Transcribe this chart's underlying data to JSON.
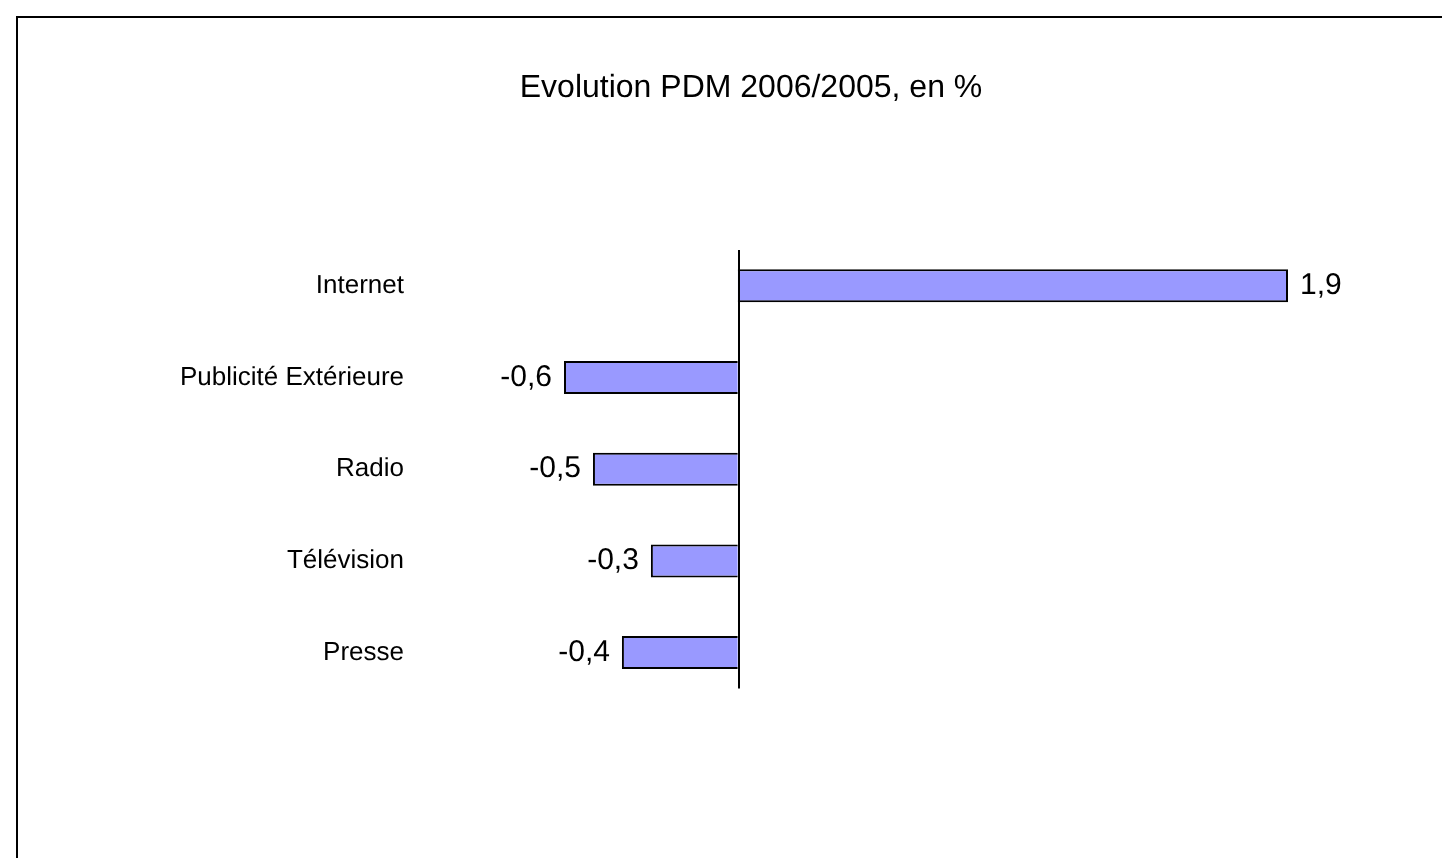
{
  "chart_data": {
    "type": "bar",
    "orientation": "horizontal",
    "title": "Evolution PDM 2006/2005, en %",
    "categories": [
      "Internet",
      "Publicité Extérieure",
      "Radio",
      "Télévision",
      "Presse"
    ],
    "values": [
      1.9,
      -0.6,
      -0.5,
      -0.3,
      -0.4
    ],
    "value_labels": [
      "1,9",
      "-0,6",
      "-0,5",
      "-0,3",
      "-0,4"
    ],
    "color": "#9999ff",
    "tick_labels": "y",
    "legend": false
  }
}
